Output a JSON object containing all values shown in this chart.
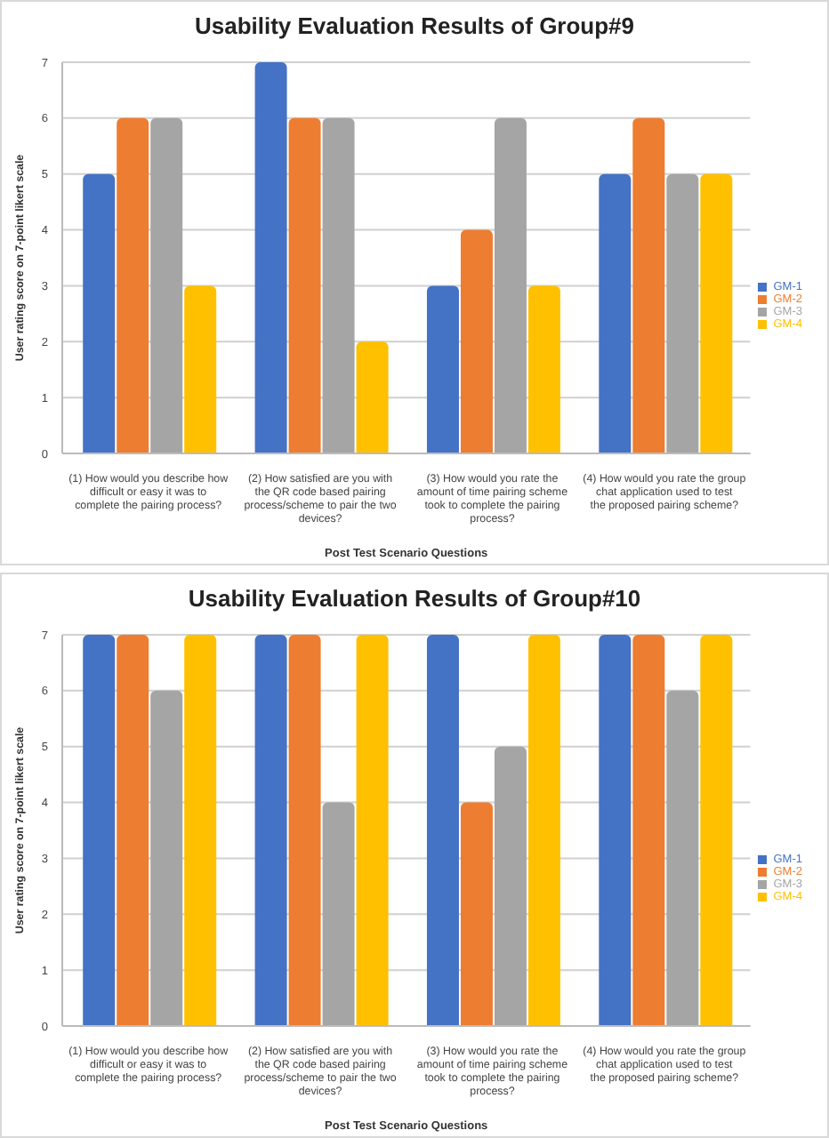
{
  "chart_data": [
    {
      "type": "bar",
      "title": "Usability Evaluation Results of Group#9",
      "xlabel": "Post Test Scenario Questions",
      "ylabel": "User rating score on 7-point likert scale",
      "categories": [
        "(1)    How would you describe how difficult or easy it was to complete the pairing process?",
        "(2)    How satisfied are you with the QR code based pairing process/scheme to pair the two devices?",
        "(3)    How would you rate the amount of time pairing scheme took to complete the pairing process?",
        "(4)    How would you rate the group chat application used to test the proposed pairing scheme?"
      ],
      "series": [
        {
          "name": "GM-1",
          "color": "#4472c4",
          "values": [
            5,
            7,
            3,
            5
          ]
        },
        {
          "name": "GM-2",
          "color": "#ed7d31",
          "values": [
            6,
            6,
            4,
            6
          ]
        },
        {
          "name": "GM-3",
          "color": "#a5a5a5",
          "values": [
            6,
            6,
            6,
            5
          ]
        },
        {
          "name": "GM-4",
          "color": "#ffc000",
          "values": [
            3,
            2,
            3,
            5
          ]
        }
      ],
      "ylim": [
        0,
        7
      ],
      "yticks": [
        0,
        1,
        2,
        3,
        4,
        5,
        6,
        7
      ],
      "grid": "y",
      "legend": "right"
    },
    {
      "type": "bar",
      "title": "Usability Evaluation Results of Group#10",
      "xlabel": "Post Test Scenario Questions",
      "ylabel": "User rating score on 7-point likert scale",
      "categories": [
        "(1)    How would you describe how difficult or easy it was to complete the pairing process?",
        "(2)    How satisfied are you with the QR code based pairing process/scheme to pair the two devices?",
        "(3)    How would you rate the amount of time pairing scheme took to complete the pairing process?",
        "(4)    How would you rate the group chat application used to test the proposed pairing scheme?"
      ],
      "series": [
        {
          "name": "GM-1",
          "color": "#4472c4",
          "values": [
            7,
            7,
            7,
            7
          ]
        },
        {
          "name": "GM-2",
          "color": "#ed7d31",
          "values": [
            7,
            7,
            4,
            7
          ]
        },
        {
          "name": "GM-3",
          "color": "#a5a5a5",
          "values": [
            6,
            4,
            5,
            6
          ]
        },
        {
          "name": "GM-4",
          "color": "#ffc000",
          "values": [
            7,
            7,
            7,
            7
          ]
        }
      ],
      "ylim": [
        0,
        7
      ],
      "yticks": [
        0,
        1,
        2,
        3,
        4,
        5,
        6,
        7
      ],
      "grid": "y",
      "legend": "right"
    }
  ]
}
